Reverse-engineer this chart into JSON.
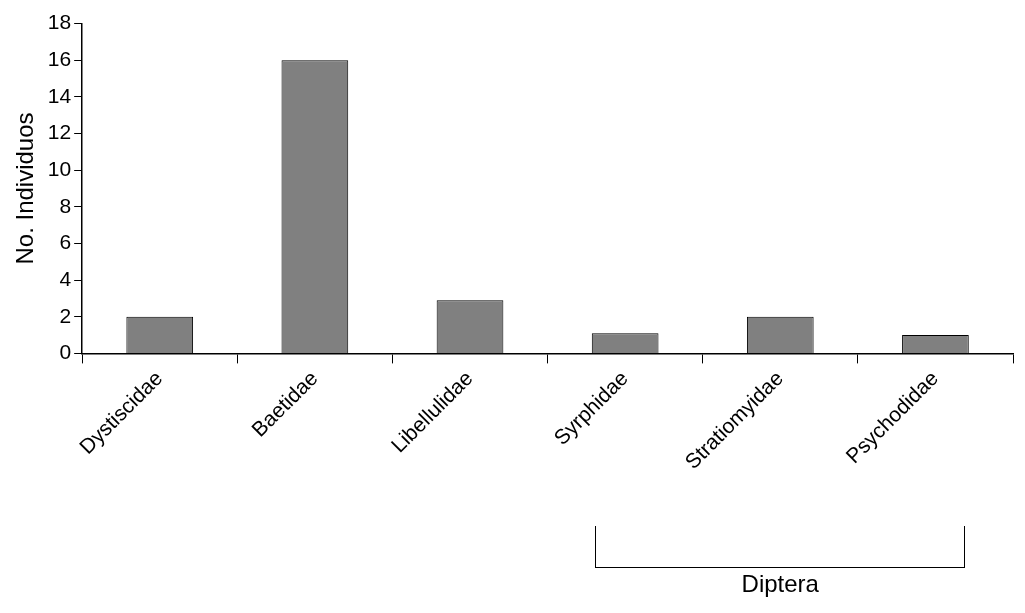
{
  "chart_data": {
    "type": "bar",
    "ylabel": "No. Individuos",
    "categories": [
      "Dystiscidae",
      "Baetidae",
      "Libellulidae",
      "Syrphidae",
      "Stratiomyidae",
      "Psychodidae"
    ],
    "values": [
      2,
      16,
      2.9,
      1.1,
      2,
      1
    ],
    "color": "#808080",
    "ylim": [
      0,
      18
    ],
    "yticks": [
      0,
      2,
      4,
      6,
      8,
      10,
      12,
      14,
      16,
      18
    ],
    "grid": false,
    "legend": false,
    "annotations": [
      "Diptera"
    ]
  }
}
